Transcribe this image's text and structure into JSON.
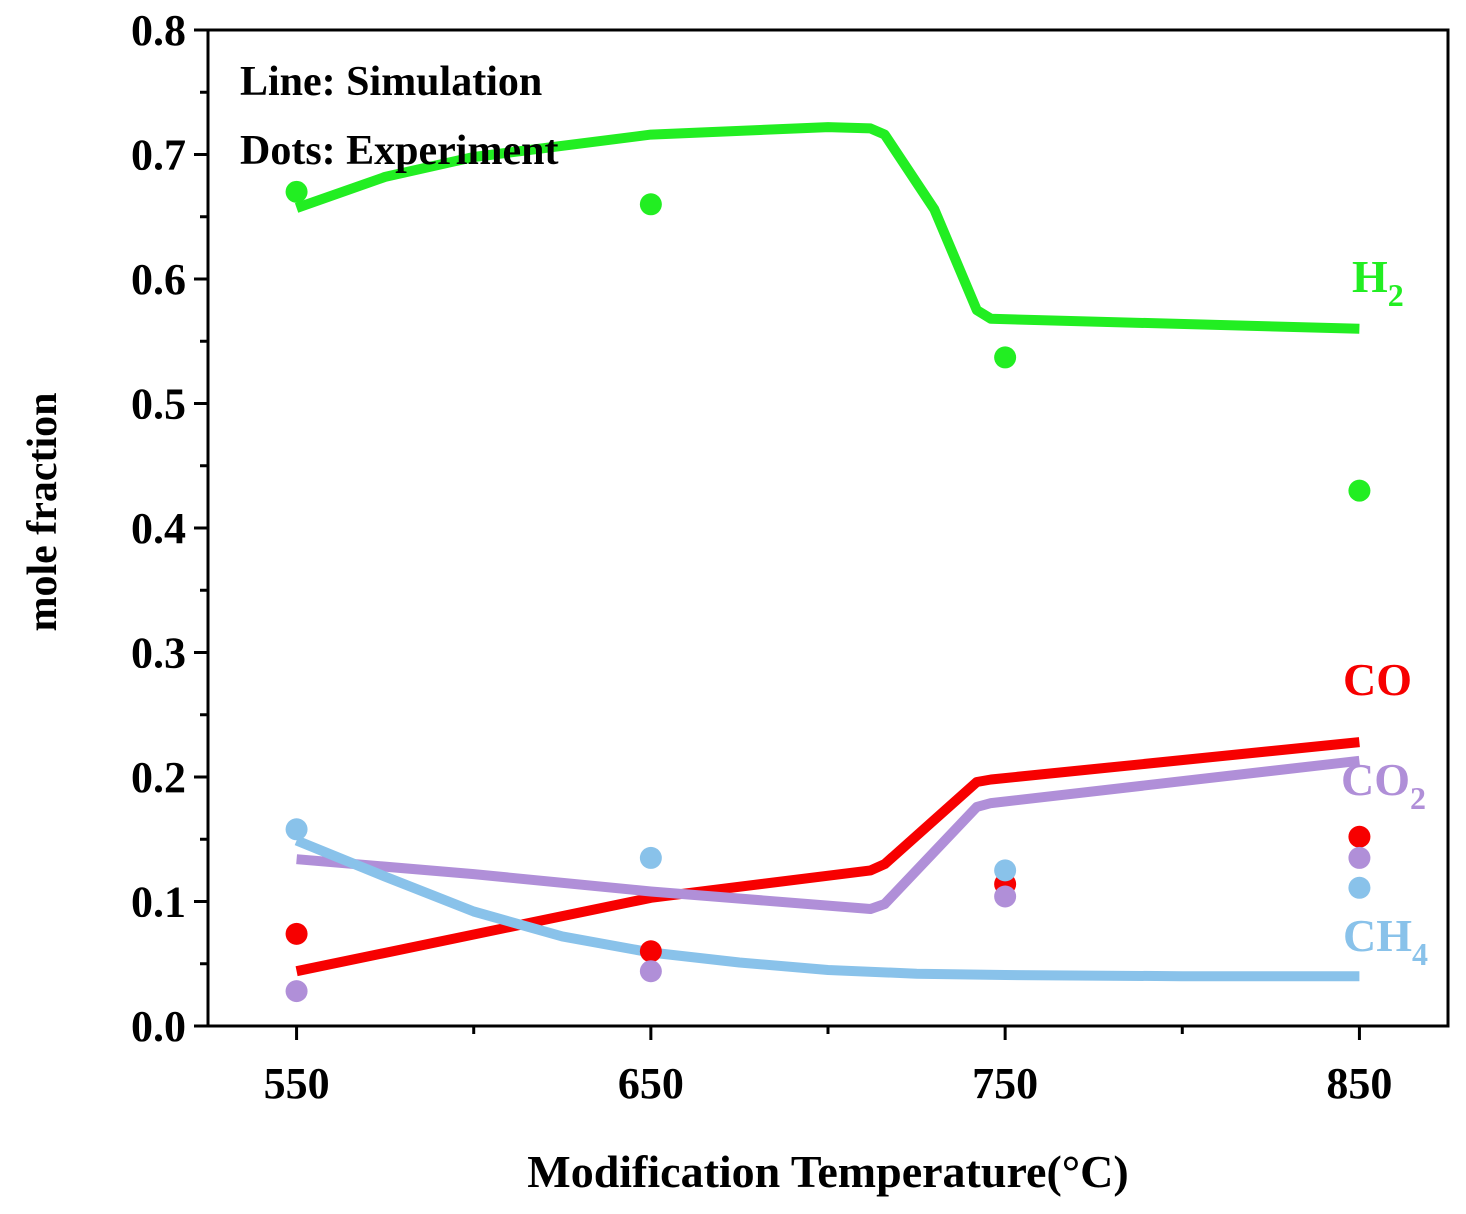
{
  "chart_data": {
    "type": "line",
    "title": "",
    "xlabel": "Modification Temperature(°C)",
    "ylabel": "mole fraction",
    "xlim": [
      525,
      875
    ],
    "ylim": [
      0,
      0.8
    ],
    "xticks": [
      550,
      650,
      750,
      850
    ],
    "xtick_labels": [
      "550",
      "650",
      "750",
      "850"
    ],
    "yticks": [
      0,
      0.1,
      0.2,
      0.3,
      0.4,
      0.5,
      0.6,
      0.7,
      0.8
    ],
    "ytick_labels": [
      "0.0",
      "0.1",
      "0.2",
      "0.3",
      "0.4",
      "0.5",
      "0.6",
      "0.7",
      "0.8"
    ],
    "annotations": [
      "Line: Simulation",
      "Dots: Experiment"
    ],
    "series": [
      {
        "name": "H2",
        "label_main": "H",
        "label_sub": "2",
        "color": "#22ee22",
        "line": [
          [
            550,
            0.657
          ],
          [
            575,
            0.682
          ],
          [
            600,
            0.698
          ],
          [
            650,
            0.716
          ],
          [
            700,
            0.722
          ],
          [
            712,
            0.721
          ],
          [
            716,
            0.716
          ],
          [
            730,
            0.656
          ],
          [
            742,
            0.575
          ],
          [
            746,
            0.568
          ],
          [
            850,
            0.56
          ]
        ],
        "points": [
          [
            550,
            0.67
          ],
          [
            650,
            0.66
          ],
          [
            750,
            0.537
          ],
          [
            850,
            0.43
          ]
        ]
      },
      {
        "name": "CO",
        "label_main": "CO",
        "label_sub": "",
        "color": "#f70000",
        "line": [
          [
            550,
            0.044
          ],
          [
            650,
            0.103
          ],
          [
            712,
            0.125
          ],
          [
            716,
            0.13
          ],
          [
            742,
            0.196
          ],
          [
            746,
            0.198
          ],
          [
            850,
            0.228
          ]
        ],
        "points": [
          [
            550,
            0.074
          ],
          [
            650,
            0.06
          ],
          [
            750,
            0.114
          ],
          [
            850,
            0.152
          ]
        ]
      },
      {
        "name": "CO2",
        "label_main": "CO",
        "label_sub": "2",
        "color": "#b08fd8",
        "line": [
          [
            550,
            0.134
          ],
          [
            600,
            0.122
          ],
          [
            650,
            0.108
          ],
          [
            712,
            0.094
          ],
          [
            716,
            0.098
          ],
          [
            742,
            0.176
          ],
          [
            746,
            0.179
          ],
          [
            850,
            0.213
          ]
        ],
        "points": [
          [
            550,
            0.028
          ],
          [
            650,
            0.044
          ],
          [
            750,
            0.104
          ],
          [
            850,
            0.135
          ]
        ]
      },
      {
        "name": "CH4",
        "label_main": "CH",
        "label_sub": "4",
        "color": "#89c2ea",
        "line": [
          [
            550,
            0.149
          ],
          [
            575,
            0.12
          ],
          [
            600,
            0.092
          ],
          [
            625,
            0.072
          ],
          [
            650,
            0.059
          ],
          [
            675,
            0.051
          ],
          [
            700,
            0.045
          ],
          [
            725,
            0.042
          ],
          [
            750,
            0.041
          ],
          [
            800,
            0.04
          ],
          [
            850,
            0.04
          ]
        ],
        "points": [
          [
            550,
            0.158
          ],
          [
            650,
            0.135
          ],
          [
            750,
            0.125
          ],
          [
            850,
            0.111
          ]
        ]
      }
    ]
  }
}
